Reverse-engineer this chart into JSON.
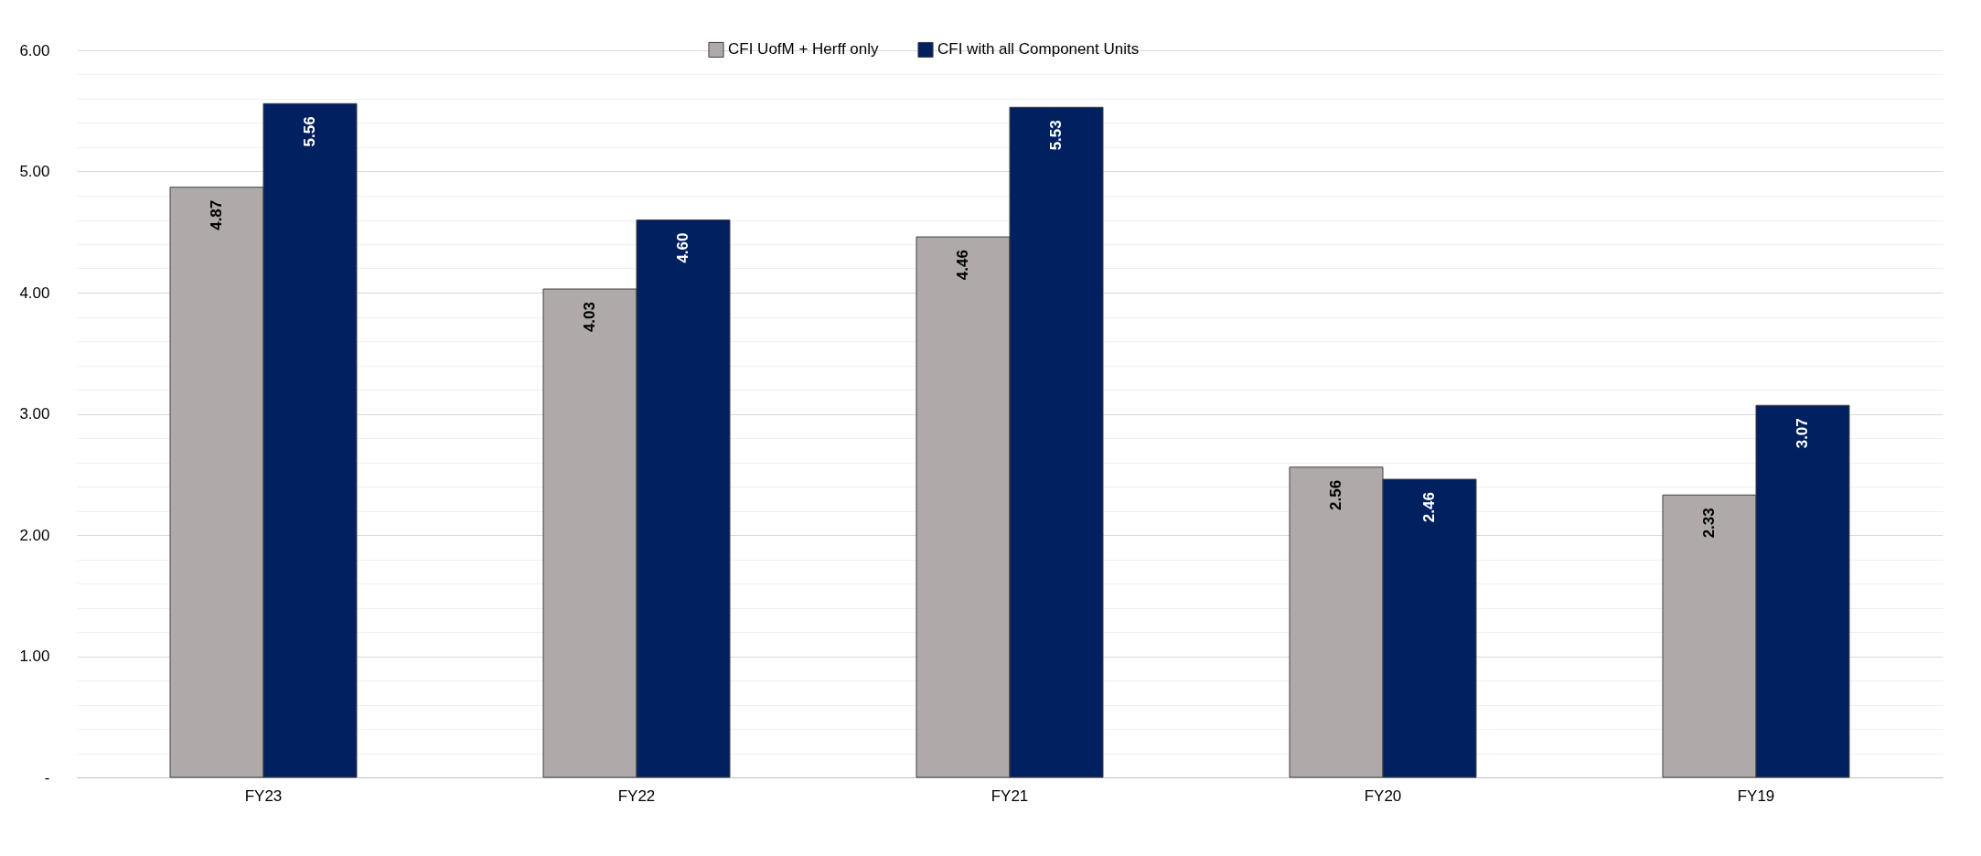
{
  "chart_data": {
    "type": "bar",
    "categories": [
      "FY23",
      "FY22",
      "FY21",
      "FY20",
      "FY19"
    ],
    "series": [
      {
        "name": "CFI UofM + Herff only",
        "color": "#afaaa9",
        "values": [
          4.87,
          4.03,
          4.46,
          2.56,
          2.33
        ],
        "value_labels": [
          "4.87",
          "4.03",
          "4.46",
          "2.56",
          "2.33"
        ]
      },
      {
        "name": "CFI with all Component Units",
        "color": "#002060",
        "values": [
          5.56,
          4.6,
          5.53,
          2.46,
          3.07
        ],
        "value_labels": [
          "5.56",
          "4.60",
          "5.53",
          "2.46",
          "3.07"
        ]
      }
    ],
    "ylim": [
      0,
      6
    ],
    "yticks": [
      {
        "value": 0,
        "label": "-"
      },
      {
        "value": 0.2,
        "label": null
      },
      {
        "value": 0.4,
        "label": null
      },
      {
        "value": 0.6,
        "label": null
      },
      {
        "value": 0.8,
        "label": null
      },
      {
        "value": 1,
        "label": "1.00"
      },
      {
        "value": 1.2,
        "label": null
      },
      {
        "value": 1.4,
        "label": null
      },
      {
        "value": 1.6,
        "label": null
      },
      {
        "value": 1.8,
        "label": null
      },
      {
        "value": 2,
        "label": "2.00"
      },
      {
        "value": 2.2,
        "label": null
      },
      {
        "value": 2.4,
        "label": null
      },
      {
        "value": 2.6,
        "label": null
      },
      {
        "value": 2.8,
        "label": null
      },
      {
        "value": 3,
        "label": "3.00"
      },
      {
        "value": 3.2,
        "label": null
      },
      {
        "value": 3.4,
        "label": null
      },
      {
        "value": 3.6,
        "label": null
      },
      {
        "value": 3.8,
        "label": null
      },
      {
        "value": 4,
        "label": "4.00"
      },
      {
        "value": 4.2,
        "label": null
      },
      {
        "value": 4.4,
        "label": null
      },
      {
        "value": 4.6,
        "label": null
      },
      {
        "value": 4.8,
        "label": null
      },
      {
        "value": 5,
        "label": "5.00"
      },
      {
        "value": 5.2,
        "label": null
      },
      {
        "value": 5.4,
        "label": null
      },
      {
        "value": 5.6,
        "label": null
      },
      {
        "value": 5.8,
        "label": null
      },
      {
        "value": 6,
        "label": "6.00"
      }
    ],
    "grid": "y",
    "legend": "top"
  }
}
